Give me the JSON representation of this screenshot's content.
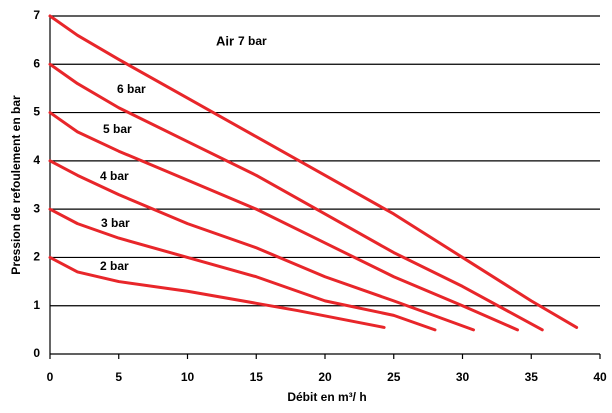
{
  "chart_data": {
    "type": "line",
    "xlabel": "Débit en m³/ h",
    "ylabel": "Pression de refoulement en bar",
    "annotations": [
      "Air"
    ],
    "xlim": [
      0,
      40
    ],
    "xticks": [
      0,
      5,
      10,
      15,
      20,
      25,
      30,
      35,
      40
    ],
    "ylim": [
      0,
      7
    ],
    "yticks": [
      0,
      1,
      2,
      3,
      4,
      5,
      6,
      7
    ],
    "grid": true,
    "series": [
      {
        "name": "7 bar",
        "color": "#e8262a",
        "x": [
          0,
          2,
          5,
          10,
          15,
          20,
          25,
          30,
          35,
          38.3
        ],
        "values": [
          7,
          6.6,
          6.1,
          5.3,
          4.5,
          3.7,
          2.9,
          2.0,
          1.1,
          0.55
        ]
      },
      {
        "name": "6 bar",
        "color": "#e8262a",
        "x": [
          0,
          2,
          5,
          10,
          15,
          20,
          25,
          30,
          35.8
        ],
        "values": [
          6,
          5.6,
          5.1,
          4.4,
          3.7,
          2.9,
          2.1,
          1.4,
          0.5
        ]
      },
      {
        "name": "5 bar",
        "color": "#e8262a",
        "x": [
          0,
          2,
          5,
          10,
          15,
          20,
          25,
          30,
          34
        ],
        "values": [
          5,
          4.6,
          4.2,
          3.6,
          3.0,
          2.3,
          1.6,
          1.0,
          0.5
        ]
      },
      {
        "name": "4 bar",
        "color": "#e8262a",
        "x": [
          0,
          2,
          5,
          10,
          15,
          20,
          25,
          30.8
        ],
        "values": [
          4,
          3.7,
          3.3,
          2.7,
          2.2,
          1.6,
          1.1,
          0.5
        ]
      },
      {
        "name": "3 bar",
        "color": "#e8262a",
        "x": [
          0,
          2,
          5,
          10,
          15,
          20,
          25,
          28
        ],
        "values": [
          3,
          2.7,
          2.4,
          2.0,
          1.6,
          1.1,
          0.8,
          0.5
        ]
      },
      {
        "name": "2 bar",
        "color": "#e8262a",
        "x": [
          0,
          2,
          5,
          10,
          15,
          18,
          24.3
        ],
        "values": [
          2,
          1.7,
          1.5,
          1.3,
          1.05,
          0.9,
          0.55
        ]
      }
    ]
  }
}
